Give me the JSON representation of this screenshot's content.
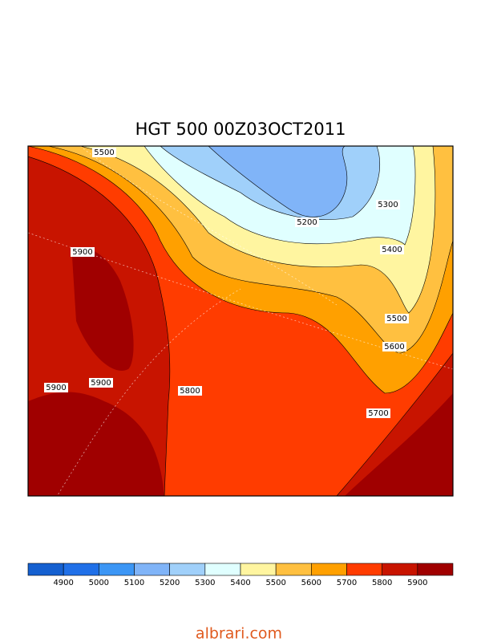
{
  "title": "HGT 500 00Z03OCT2011",
  "contour_labels": [
    5500,
    5900,
    5900,
    5900,
    5800,
    5200,
    5300,
    5400,
    5500,
    5600,
    5700
  ],
  "colorbar": {
    "colors": [
      "#1560d0",
      "#2070e8",
      "#3c96f5",
      "#80b4f8",
      "#a0d0fa",
      "#e0ffff",
      "#fff5a0",
      "#ffc040",
      "#ffa000",
      "#ff3c00",
      "#c81400",
      "#a00000"
    ],
    "labels": [
      4900,
      5000,
      5100,
      5200,
      5300,
      5400,
      5500,
      5600,
      5700,
      5800,
      5900
    ]
  },
  "footer": "albrari.com"
}
